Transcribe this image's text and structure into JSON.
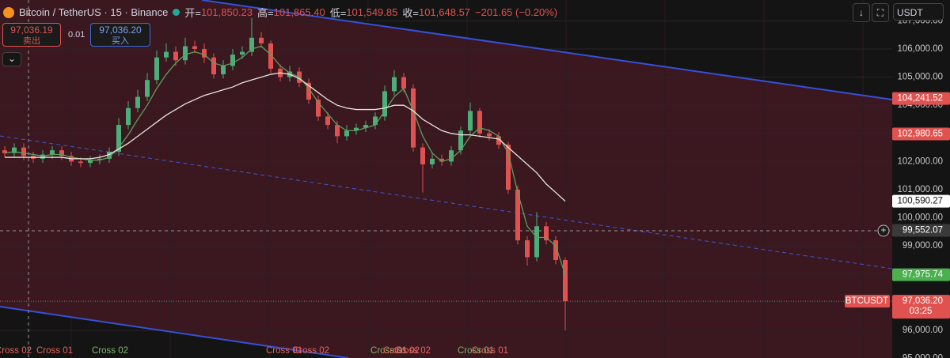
{
  "header": {
    "symbol": "Bitcoin / TetherUS · 15 · Binance",
    "ohlc": [
      {
        "label": "开=",
        "value": "101,850.23"
      },
      {
        "label": "高=",
        "value": "101,865.40"
      },
      {
        "label": "低=",
        "value": "101,549.85"
      },
      {
        "label": "收=",
        "value": "101,648.57"
      }
    ],
    "change": "−201.65 (−0.20%)"
  },
  "trade": {
    "sell_price": "97,036.19",
    "sell_label": "卖出",
    "qty": "0.01",
    "buy_price": "97,036.20",
    "buy_label": "买入"
  },
  "currency": "USDT",
  "chart_data": {
    "type": "candlestick",
    "up_color": "#4caf7a",
    "down_color": "#e0524f",
    "open": [
      102400,
      102300,
      102500,
      102200,
      102100,
      102250,
      102400,
      102200,
      102000,
      101950,
      102050,
      102100,
      102350,
      103300,
      103900,
      104300,
      104900,
      105700,
      105900,
      105600,
      106100,
      106000,
      105700,
      105100,
      105400,
      105800,
      105900,
      106400,
      106200,
      105300,
      105000,
      105200,
      104800,
      104200,
      103600,
      103300,
      102900,
      103100,
      103200,
      103300,
      103600,
      104500,
      105000,
      104600,
      102500,
      101900,
      102100,
      102000,
      102400,
      103100,
      103800,
      103000,
      102900,
      102600,
      101000,
      99200,
      98600,
      99700,
      99200,
      98500
    ],
    "high": [
      102550,
      102650,
      102650,
      102350,
      102400,
      102550,
      102550,
      102350,
      102150,
      102200,
      102250,
      102500,
      103550,
      104150,
      104550,
      105150,
      105950,
      106200,
      106100,
      106400,
      106300,
      106200,
      105850,
      105600,
      106000,
      106100,
      107100,
      106600,
      106300,
      105450,
      105400,
      105350,
      104950,
      104350,
      103750,
      103450,
      103300,
      103350,
      103450,
      103750,
      104700,
      105250,
      105150,
      104750,
      102650,
      102300,
      102250,
      102550,
      103250,
      104100,
      103900,
      103150,
      103050,
      102700,
      101150,
      99350,
      100200,
      99850,
      99350,
      98600
    ],
    "low": [
      102150,
      102150,
      102050,
      101950,
      101950,
      102100,
      102050,
      101850,
      101800,
      101800,
      101900,
      101950,
      102200,
      103150,
      103750,
      104150,
      104750,
      105550,
      105400,
      105450,
      105850,
      105500,
      104950,
      104950,
      105250,
      105650,
      105750,
      106050,
      105150,
      104850,
      104850,
      104650,
      104050,
      103450,
      103150,
      102650,
      102750,
      102950,
      103050,
      103150,
      103450,
      104350,
      104450,
      102350,
      100900,
      101750,
      101850,
      101850,
      102250,
      102950,
      102850,
      102750,
      102450,
      100850,
      99050,
      98300,
      98450,
      99050,
      98350,
      96000
    ],
    "close": [
      102300,
      102500,
      102200,
      102100,
      102250,
      102400,
      102200,
      102000,
      101950,
      102050,
      102100,
      102350,
      103300,
      103900,
      104300,
      104900,
      105700,
      105900,
      105600,
      106100,
      106000,
      105700,
      105100,
      105400,
      105800,
      105900,
      106400,
      106200,
      105300,
      105000,
      105200,
      104800,
      104200,
      103600,
      103300,
      102900,
      103100,
      103200,
      103300,
      103600,
      104500,
      105000,
      104600,
      102500,
      101900,
      102100,
      102000,
      102400,
      103100,
      103800,
      103000,
      102900,
      102600,
      101000,
      99200,
      98600,
      99700,
      99200,
      98500,
      97036.2
    ],
    "moving_averages": [
      {
        "color": "#5f9e5a",
        "values": [
          102300,
          102350,
          102300,
          102250,
          102200,
          102250,
          102250,
          102150,
          102100,
          102050,
          102050,
          102150,
          102500,
          102950,
          103500,
          104000,
          104600,
          105100,
          105500,
          105800,
          105900,
          105800,
          105500,
          105400,
          105500,
          105700,
          106000,
          106100,
          105800,
          105400,
          105150,
          105000,
          104600,
          104100,
          103700,
          103300,
          103100,
          103100,
          103200,
          103300,
          103800,
          104300,
          104600,
          103800,
          102900,
          102300,
          102000,
          102100,
          102400,
          102900,
          103200,
          103100,
          102900,
          102300,
          100900,
          99700,
          99300,
          99300,
          99000,
          97975.74
        ]
      },
      {
        "color": "#e8e4dc",
        "values": [
          102150,
          102150,
          102150,
          102150,
          102150,
          102150,
          102150,
          102100,
          102100,
          102100,
          102150,
          102250,
          102450,
          102650,
          102900,
          103150,
          103400,
          103650,
          103850,
          104050,
          104200,
          104350,
          104450,
          104550,
          104650,
          104800,
          104900,
          105000,
          105100,
          105150,
          105100,
          104950,
          104700,
          104450,
          104200,
          104000,
          103900,
          103850,
          103850,
          103850,
          103900,
          104000,
          104000,
          103800,
          103500,
          103300,
          103100,
          103000,
          102950,
          102950,
          102900,
          102850,
          102800,
          102500,
          102200,
          101900,
          101600,
          101200,
          100900,
          100590.27
        ]
      }
    ],
    "ylim": [
      95017,
      107742
    ],
    "yticks": [
      {
        "value": 95000,
        "label": "95,000.00"
      },
      {
        "value": 96000,
        "label": "96,000.00"
      },
      {
        "value": 97000,
        "label": "97,000.00"
      },
      {
        "value": 98000,
        "label": "98,000.00"
      },
      {
        "value": 99000,
        "label": "99,000.00"
      },
      {
        "value": 100000,
        "label": "100,000.00"
      },
      {
        "value": 101000,
        "label": "101,000.00"
      },
      {
        "value": 102000,
        "label": "102,000.00"
      },
      {
        "value": 103000,
        "label": "103,000.00"
      },
      {
        "value": 104000,
        "label": "104,000.00"
      },
      {
        "value": 105000,
        "label": "105,000.00"
      },
      {
        "value": 106000,
        "label": "106,000.00"
      },
      {
        "value": 107000,
        "label": "107,000.00"
      }
    ],
    "grid": true,
    "price_tags": [
      {
        "value": 104241.52,
        "label": "104,241.52",
        "color": "#e0524f"
      },
      {
        "value": 102980.65,
        "label": "102,980.65",
        "color": "#e0524f"
      },
      {
        "value": 100590.27,
        "label": "100,590.27",
        "color": "#ffffff"
      },
      {
        "value": 99552.07,
        "label": "99,552.07",
        "color": "#3a3a3a"
      },
      {
        "value": 97975.74,
        "label": "97,975.74",
        "color": "#4caf50"
      },
      {
        "value": 97036.2,
        "label": "97,036.20",
        "color": "#e0524f"
      }
    ],
    "symbol_tag": "BTCUSDT",
    "countdown": "03:25",
    "annotations": [
      "Cross 02",
      "Cross 01",
      "Cross 02",
      "Cross 01",
      "Cross 02",
      "Cross 01",
      "Cross 02",
      "Cross 02",
      "Cross 01",
      "Cross 01"
    ]
  }
}
